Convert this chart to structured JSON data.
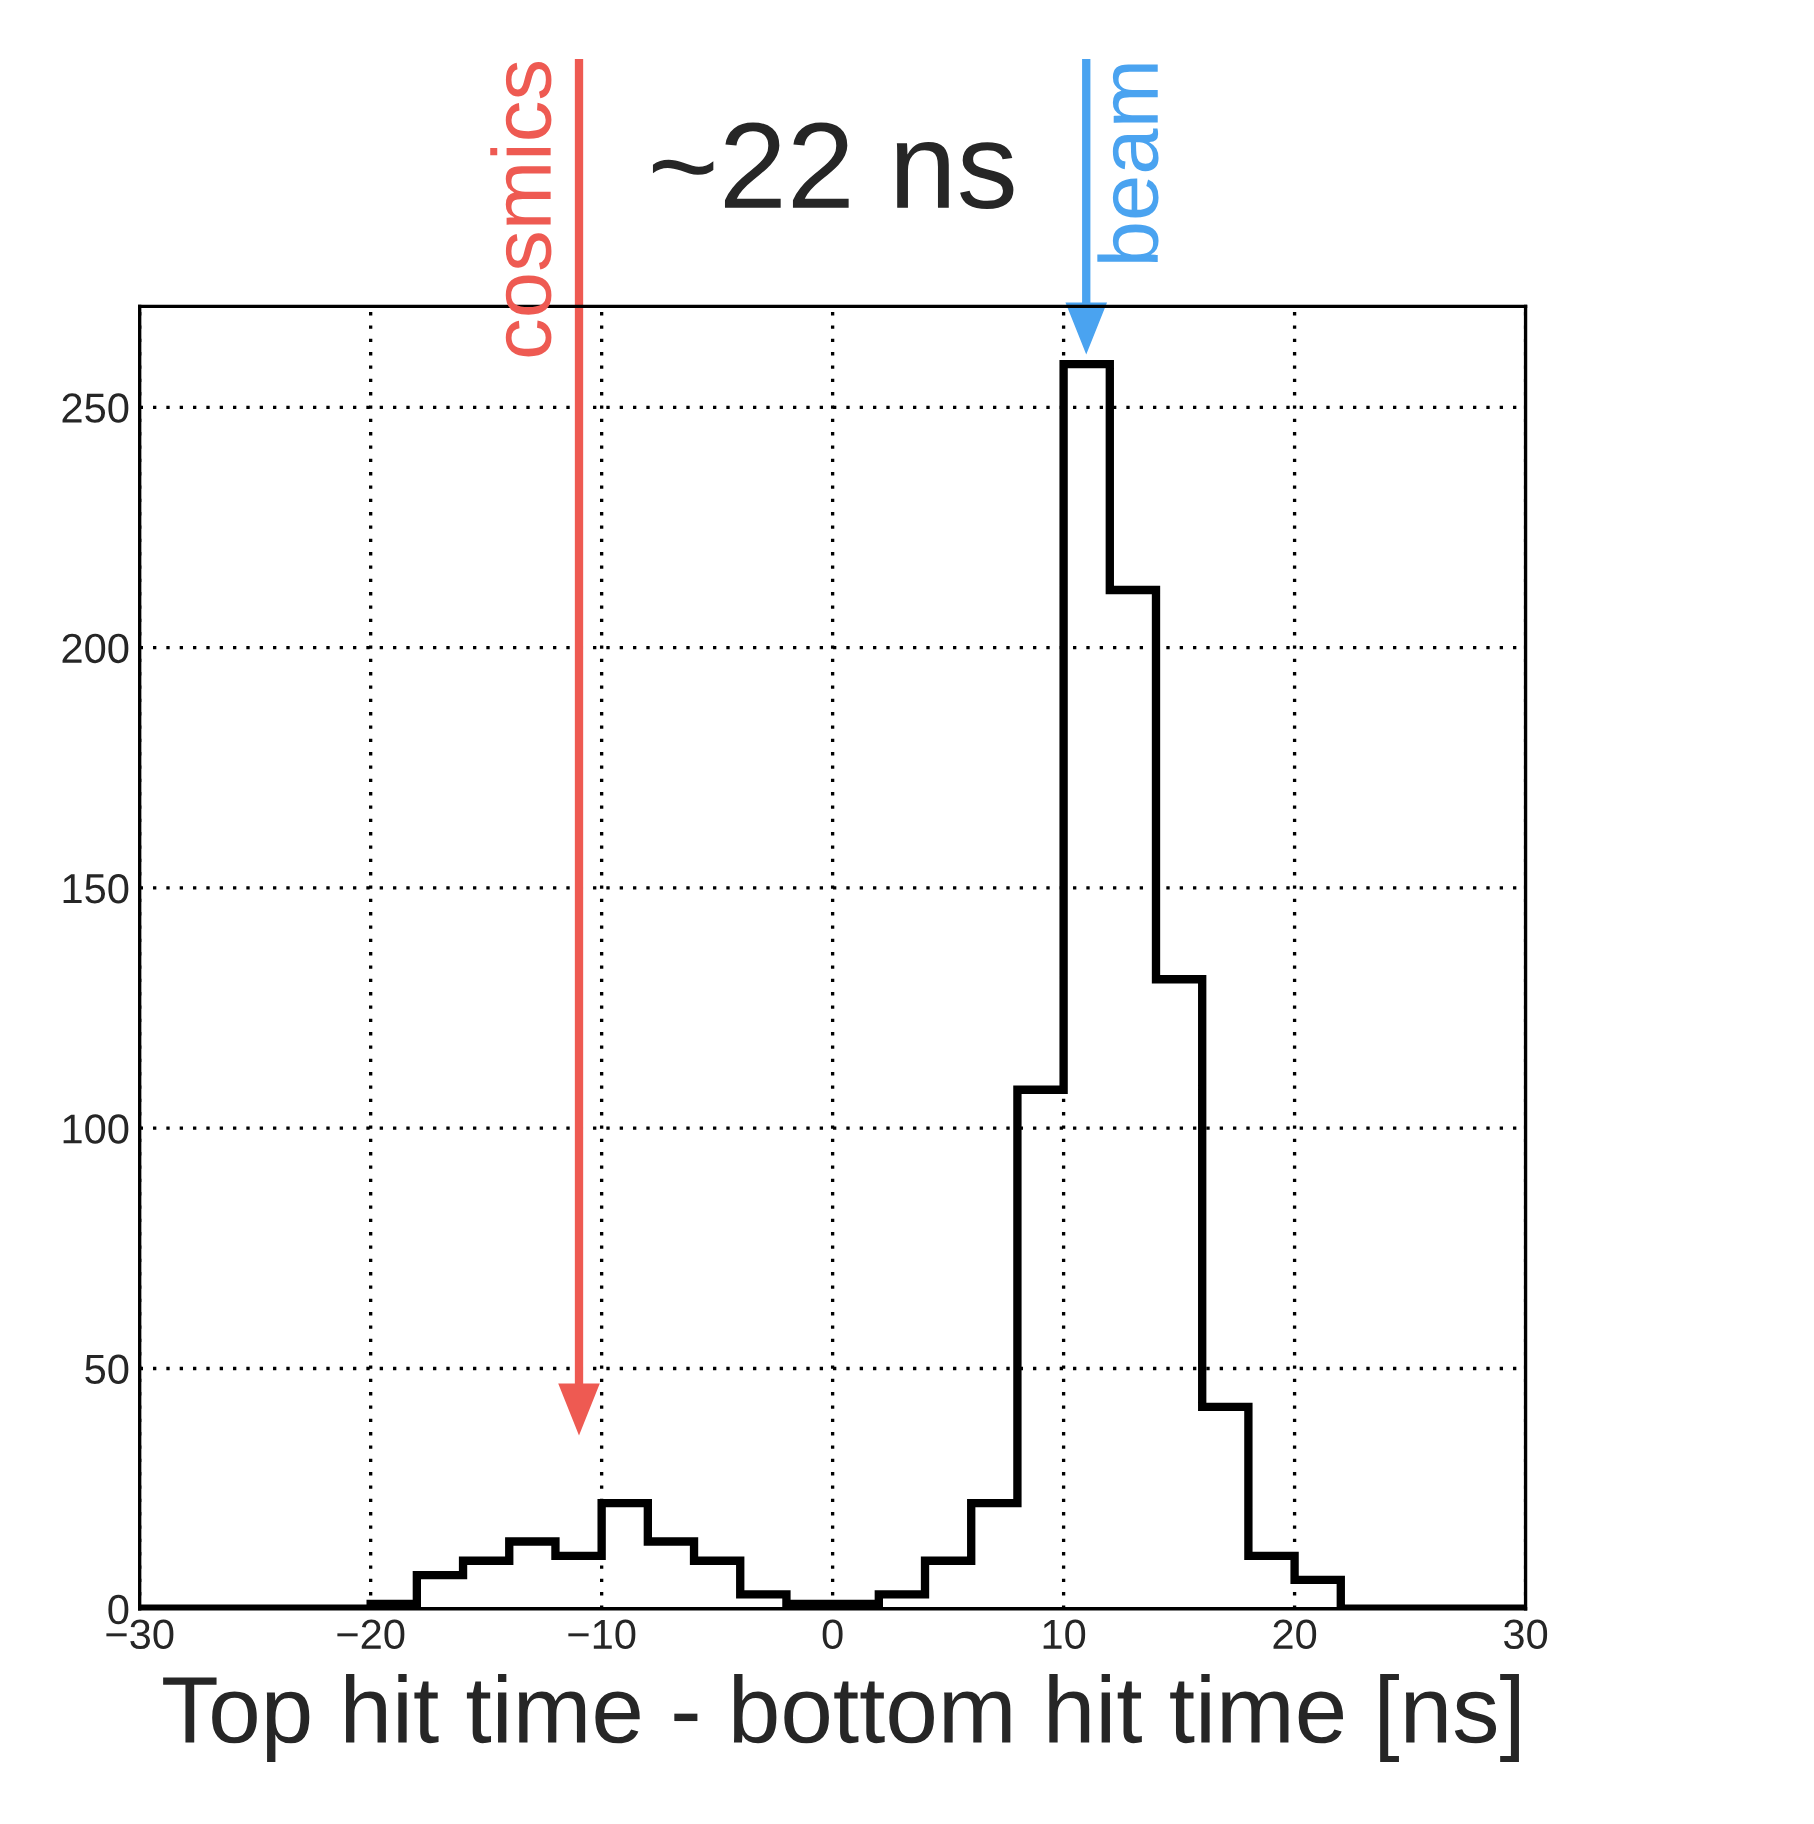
{
  "chart_data": {
    "type": "histogram",
    "title": "~22 ns",
    "xlabel": "Top hit time - bottom hit time [ns]",
    "bins": [
      -30,
      -28,
      -26,
      -24,
      -22,
      -20,
      -18,
      -16,
      -14,
      -12,
      -10,
      -8,
      -6,
      -4,
      -2,
      0,
      2,
      4,
      6,
      8,
      10,
      12,
      14,
      16,
      18,
      20,
      22,
      24,
      26,
      28,
      30
    ],
    "values": [
      0,
      0,
      0,
      0,
      0,
      1,
      7,
      10,
      14,
      11,
      22,
      14,
      10,
      3,
      1,
      1,
      3,
      10,
      22,
      108,
      259,
      212,
      131,
      42,
      11,
      6,
      0,
      0,
      0,
      0
    ],
    "color": "#000000",
    "xlim": [
      -30,
      30
    ],
    "xticks": [
      {
        "value": -30,
        "label": "−30"
      },
      {
        "value": -20,
        "label": "−20"
      },
      {
        "value": -10,
        "label": "−10"
      },
      0,
      10,
      20,
      30
    ],
    "ylim": [
      0,
      271
    ],
    "yticks": [
      0,
      50,
      100,
      150,
      200,
      250
    ],
    "grid": true,
    "annotations": [
      "cosmics",
      "beam"
    ]
  }
}
